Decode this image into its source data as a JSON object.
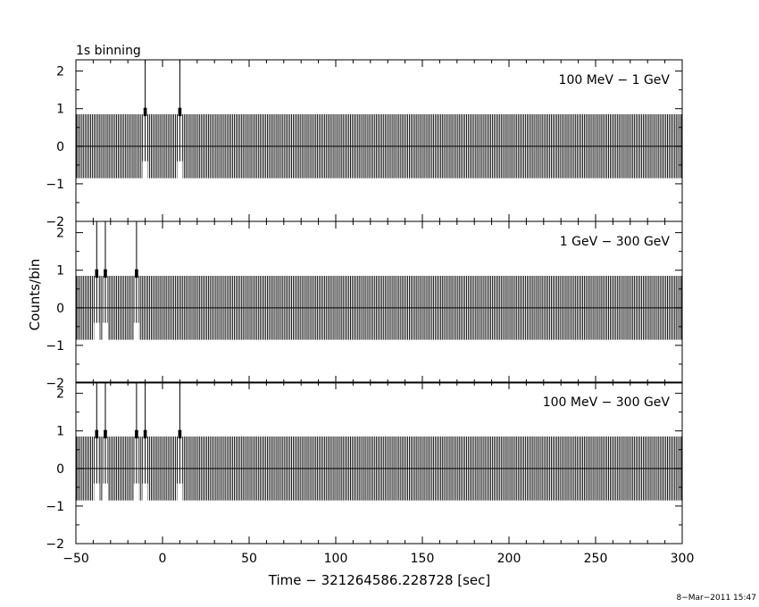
{
  "chart_data": {
    "type": "histogram",
    "top_label": "1s binning",
    "xlabel": "Time − 321264586.228728 [sec]",
    "ylabel": "Counts/bin",
    "xlim": [
      -50,
      300
    ],
    "ylim": [
      -2,
      2.3
    ],
    "x_ticks": [
      -50,
      0,
      50,
      100,
      150,
      200,
      250,
      300
    ],
    "x_tick_labels": [
      "−50",
      "0",
      "50",
      "100",
      "150",
      "200",
      "250",
      "300"
    ],
    "y_ticks": [
      -2,
      -1,
      0,
      1,
      2
    ],
    "y_tick_labels": [
      "−2",
      "−1",
      "0",
      "1",
      "2"
    ],
    "bin_width_sec": 1,
    "baseline_counts": 0,
    "error_bar_half_height_zero_bins": 0.85,
    "error_bar_range_single_count_bins": [
      -0.5,
      2.3
    ],
    "panels": [
      {
        "name": "100 MeV − 1 GeV",
        "label": "100 MeV − 1 GeV",
        "event_times": [
          -10,
          10
        ]
      },
      {
        "name": "1 GeV − 300 GeV",
        "label": "1 GeV − 300 GeV",
        "event_times": [
          -38,
          -33,
          -15
        ]
      },
      {
        "name": "100 MeV − 300 GeV",
        "label": "100 MeV − 300 GeV",
        "event_times": [
          -38,
          -33,
          -15,
          -10,
          10
        ]
      }
    ]
  },
  "timestamp": "8−Mar−2011 15:47"
}
